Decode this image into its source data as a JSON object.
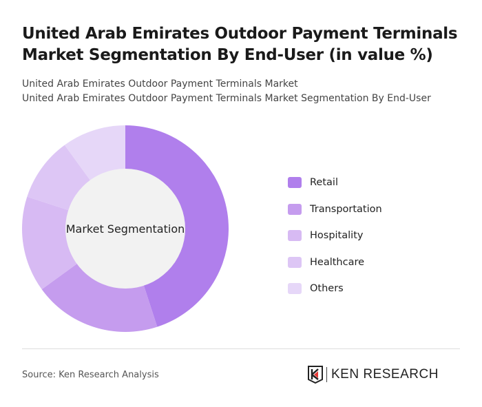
{
  "title": "United Arab Emirates Outdoor Payment Terminals Market Segmentation By End-User (in value %)",
  "subtitle_1": "United Arab Emirates Outdoor Payment Terminals Market",
  "subtitle_2": "United Arab Emirates Outdoor Payment Terminals Market Segmentation By End-User",
  "source": "Source: Ken Research Analysis",
  "logo": {
    "text": "KEN RESEARCH",
    "accent_color": "#e53935"
  },
  "chart_data": {
    "type": "pie",
    "variant": "donut",
    "center_label": "Market Segmentation",
    "categories": [
      "Retail",
      "Transportation",
      "Hospitality",
      "Healthcare",
      "Others"
    ],
    "values": [
      45,
      20,
      15,
      10,
      10
    ],
    "unit": "%",
    "colors": [
      "#b07fec",
      "#c59cee",
      "#d7baf3",
      "#ddc6f5",
      "#e6d7f8"
    ],
    "center_fill": "#f2f2f2",
    "legend_placement": "right"
  }
}
